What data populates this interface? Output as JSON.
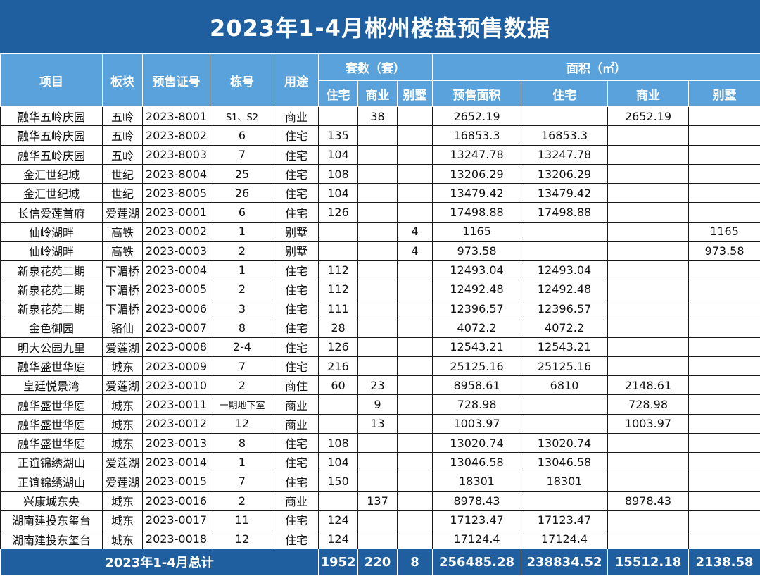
{
  "title": "2023年1-4月郴州楼盘预售数据",
  "header": {
    "project": "项目",
    "district": "板块",
    "permit": "预售证号",
    "building": "栋号",
    "usage": "用途",
    "units_group": "套数（套）",
    "area_group": "面积（㎡）",
    "units_residential": "住宅",
    "units_commercial": "商业",
    "units_villa": "别墅",
    "area_presale": "预售面积",
    "area_residential": "住宅",
    "area_commercial": "商业",
    "area_villa": "别墅"
  },
  "rows": [
    {
      "project": "融华五岭庆园",
      "district": "五岭",
      "permit": "2023-8001",
      "building": "S1、S2",
      "usage": "商业",
      "units_res": "",
      "units_com": "38",
      "units_villa": "",
      "area_total": "2652.19",
      "area_res": "",
      "area_com": "2652.19",
      "area_villa": ""
    },
    {
      "project": "融华五岭庆园",
      "district": "五岭",
      "permit": "2023-8002",
      "building": "6",
      "usage": "住宅",
      "units_res": "135",
      "units_com": "",
      "units_villa": "",
      "area_total": "16853.3",
      "area_res": "16853.3",
      "area_com": "",
      "area_villa": ""
    },
    {
      "project": "融华五岭庆园",
      "district": "五岭",
      "permit": "2023-8003",
      "building": "7",
      "usage": "住宅",
      "units_res": "104",
      "units_com": "",
      "units_villa": "",
      "area_total": "13247.78",
      "area_res": "13247.78",
      "area_com": "",
      "area_villa": ""
    },
    {
      "project": "金汇世纪城",
      "district": "世纪",
      "permit": "2023-8004",
      "building": "25",
      "usage": "住宅",
      "units_res": "108",
      "units_com": "",
      "units_villa": "",
      "area_total": "13206.29",
      "area_res": "13206.29",
      "area_com": "",
      "area_villa": ""
    },
    {
      "project": "金汇世纪城",
      "district": "世纪",
      "permit": "2023-8005",
      "building": "26",
      "usage": "住宅",
      "units_res": "104",
      "units_com": "",
      "units_villa": "",
      "area_total": "13479.42",
      "area_res": "13479.42",
      "area_com": "",
      "area_villa": ""
    },
    {
      "project": "长信爱莲首府",
      "district": "爱莲湖",
      "permit": "2023-0001",
      "building": "6",
      "usage": "住宅",
      "units_res": "126",
      "units_com": "",
      "units_villa": "",
      "area_total": "17498.88",
      "area_res": "17498.88",
      "area_com": "",
      "area_villa": ""
    },
    {
      "project": "仙岭湖畔",
      "district": "高铁",
      "permit": "2023-0002",
      "building": "1",
      "usage": "别墅",
      "units_res": "",
      "units_com": "",
      "units_villa": "4",
      "area_total": "1165",
      "area_res": "",
      "area_com": "",
      "area_villa": "1165"
    },
    {
      "project": "仙岭湖畔",
      "district": "高铁",
      "permit": "2023-0003",
      "building": "2",
      "usage": "别墅",
      "units_res": "",
      "units_com": "",
      "units_villa": "4",
      "area_total": "973.58",
      "area_res": "",
      "area_com": "",
      "area_villa": "973.58"
    },
    {
      "project": "新泉花苑二期",
      "district": "下湄桥",
      "permit": "2023-0004",
      "building": "1",
      "usage": "住宅",
      "units_res": "112",
      "units_com": "",
      "units_villa": "",
      "area_total": "12493.04",
      "area_res": "12493.04",
      "area_com": "",
      "area_villa": ""
    },
    {
      "project": "新泉花苑二期",
      "district": "下湄桥",
      "permit": "2023-0005",
      "building": "2",
      "usage": "住宅",
      "units_res": "112",
      "units_com": "",
      "units_villa": "",
      "area_total": "12492.48",
      "area_res": "12492.48",
      "area_com": "",
      "area_villa": ""
    },
    {
      "project": "新泉花苑二期",
      "district": "下湄桥",
      "permit": "2023-0006",
      "building": "3",
      "usage": "住宅",
      "units_res": "111",
      "units_com": "",
      "units_villa": "",
      "area_total": "12396.57",
      "area_res": "12396.57",
      "area_com": "",
      "area_villa": ""
    },
    {
      "project": "金色御园",
      "district": "骆仙",
      "permit": "2023-0007",
      "building": "8",
      "usage": "住宅",
      "units_res": "28",
      "units_com": "",
      "units_villa": "",
      "area_total": "4072.2",
      "area_res": "4072.2",
      "area_com": "",
      "area_villa": ""
    },
    {
      "project": "明大公园九里",
      "district": "爱莲湖",
      "permit": "2023-0008",
      "building": "2-4",
      "usage": "住宅",
      "units_res": "126",
      "units_com": "",
      "units_villa": "",
      "area_total": "12543.21",
      "area_res": "12543.21",
      "area_com": "",
      "area_villa": ""
    },
    {
      "project": "融华盛世华庭",
      "district": "城东",
      "permit": "2023-0009",
      "building": "7",
      "usage": "住宅",
      "units_res": "216",
      "units_com": "",
      "units_villa": "",
      "area_total": "25125.16",
      "area_res": "25125.16",
      "area_com": "",
      "area_villa": ""
    },
    {
      "project": "皇廷悦景湾",
      "district": "爱莲湖",
      "permit": "2023-0010",
      "building": "2",
      "usage": "商住",
      "units_res": "60",
      "units_com": "23",
      "units_villa": "",
      "area_total": "8958.61",
      "area_res": "6810",
      "area_com": "2148.61",
      "area_villa": ""
    },
    {
      "project": "融华盛世华庭",
      "district": "城东",
      "permit": "2023-0011",
      "building": "一期地下室",
      "usage": "商业",
      "units_res": "",
      "units_com": "9",
      "units_villa": "",
      "area_total": "728.98",
      "area_res": "",
      "area_com": "728.98",
      "area_villa": ""
    },
    {
      "project": "融华盛世华庭",
      "district": "城东",
      "permit": "2023-0012",
      "building": "12",
      "usage": "商业",
      "units_res": "",
      "units_com": "13",
      "units_villa": "",
      "area_total": "1003.97",
      "area_res": "",
      "area_com": "1003.97",
      "area_villa": ""
    },
    {
      "project": "融华盛世华庭",
      "district": "城东",
      "permit": "2023-0013",
      "building": "8",
      "usage": "住宅",
      "units_res": "108",
      "units_com": "",
      "units_villa": "",
      "area_total": "13020.74",
      "area_res": "13020.74",
      "area_com": "",
      "area_villa": ""
    },
    {
      "project": "正谊锦绣湖山",
      "district": "爱莲湖",
      "permit": "2023-0014",
      "building": "1",
      "usage": "住宅",
      "units_res": "104",
      "units_com": "",
      "units_villa": "",
      "area_total": "13046.58",
      "area_res": "13046.58",
      "area_com": "",
      "area_villa": ""
    },
    {
      "project": "正谊锦绣湖山",
      "district": "爱莲湖",
      "permit": "2023-0015",
      "building": "7",
      "usage": "住宅",
      "units_res": "150",
      "units_com": "",
      "units_villa": "",
      "area_total": "18301",
      "area_res": "18301",
      "area_com": "",
      "area_villa": ""
    },
    {
      "project": "兴康城东央",
      "district": "城东",
      "permit": "2023-0016",
      "building": "2",
      "usage": "商业",
      "units_res": "",
      "units_com": "137",
      "units_villa": "",
      "area_total": "8978.43",
      "area_res": "",
      "area_com": "8978.43",
      "area_villa": ""
    },
    {
      "project": "湖南建投东玺台",
      "district": "城东",
      "permit": "2023-0017",
      "building": "11",
      "usage": "住宅",
      "units_res": "124",
      "units_com": "",
      "units_villa": "",
      "area_total": "17123.47",
      "area_res": "17123.47",
      "area_com": "",
      "area_villa": ""
    },
    {
      "project": "湖南建投东玺台",
      "district": "城东",
      "permit": "2023-0018",
      "building": "12",
      "usage": "住宅",
      "units_res": "124",
      "units_com": "",
      "units_villa": "",
      "area_total": "17124.4",
      "area_res": "17124.4",
      "area_com": "",
      "area_villa": ""
    }
  ],
  "totals": {
    "label": "2023年1-4月总计",
    "units_res": "1952",
    "units_com": "220",
    "units_villa": "8",
    "area_total": "256485.28",
    "area_res": "238834.52",
    "area_com": "15512.18",
    "area_villa": "2138.58"
  },
  "colors": {
    "title_bg": "#1f5f9f",
    "header_bg": "#5aa2dc",
    "total_bg": "#1f5f9f"
  }
}
